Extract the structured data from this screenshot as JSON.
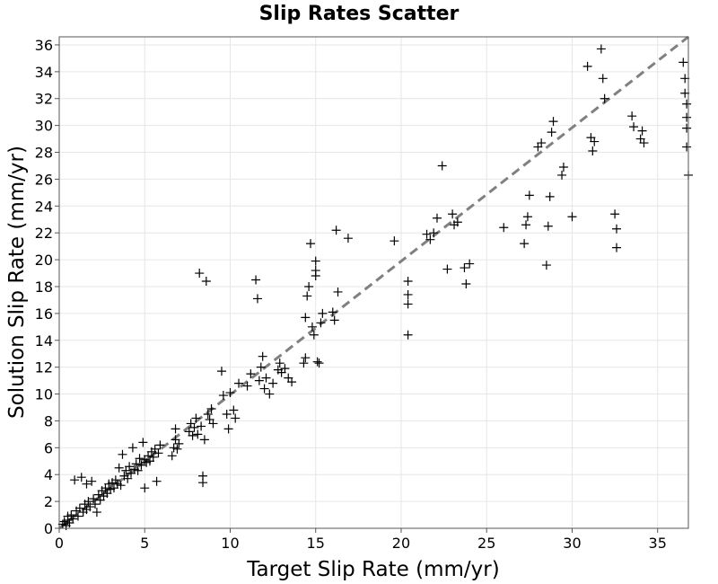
{
  "chart_data": {
    "type": "scatter",
    "title": "Slip Rates Scatter",
    "xlabel": "Target Slip Rate (mm/yr)",
    "ylabel": "Solution Slip Rate (mm/yr)",
    "xlim": [
      0,
      36.8
    ],
    "ylim": [
      0,
      36.6
    ],
    "x_ticks": [
      0,
      5,
      10,
      15,
      20,
      25,
      30,
      35
    ],
    "y_ticks": [
      0,
      2,
      4,
      6,
      8,
      10,
      12,
      14,
      16,
      18,
      20,
      22,
      24,
      26,
      28,
      30,
      32,
      34,
      36
    ],
    "grid": true,
    "marker": "+",
    "reference_line": {
      "style": "dashed",
      "color": "#808080",
      "from": [
        0,
        0
      ],
      "to": [
        36.8,
        36.8
      ]
    },
    "points": [
      [
        0.2,
        0.3
      ],
      [
        0.3,
        0.5
      ],
      [
        0.4,
        0.2
      ],
      [
        0.5,
        0.6
      ],
      [
        0.5,
        0.9
      ],
      [
        0.6,
        0.4
      ],
      [
        0.7,
        1.0
      ],
      [
        0.8,
        0.7
      ],
      [
        0.9,
        3.6
      ],
      [
        1.0,
        1.3
      ],
      [
        1.1,
        0.9
      ],
      [
        1.2,
        1.5
      ],
      [
        1.3,
        3.8
      ],
      [
        1.4,
        1.2
      ],
      [
        1.5,
        1.8
      ],
      [
        1.6,
        1.4
      ],
      [
        1.6,
        3.3
      ],
      [
        1.7,
        2.0
      ],
      [
        1.8,
        1.6
      ],
      [
        1.9,
        3.5
      ],
      [
        2.0,
        2.2
      ],
      [
        2.1,
        1.8
      ],
      [
        2.2,
        1.2
      ],
      [
        2.3,
        2.5
      ],
      [
        2.4,
        2.1
      ],
      [
        2.5,
        2.8
      ],
      [
        2.6,
        2.4
      ],
      [
        2.7,
        3.0
      ],
      [
        2.8,
        2.6
      ],
      [
        2.9,
        3.3
      ],
      [
        3.0,
        2.9
      ],
      [
        3.1,
        3.4
      ],
      [
        3.2,
        3.0
      ],
      [
        3.3,
        3.6
      ],
      [
        3.4,
        3.3
      ],
      [
        3.5,
        4.5
      ],
      [
        3.6,
        3.2
      ],
      [
        3.7,
        5.5
      ],
      [
        3.8,
        3.9
      ],
      [
        3.9,
        4.3
      ],
      [
        4.0,
        3.7
      ],
      [
        4.1,
        4.6
      ],
      [
        4.2,
        4.1
      ],
      [
        4.3,
        6.0
      ],
      [
        4.4,
        4.4
      ],
      [
        4.5,
        4.8
      ],
      [
        4.6,
        4.3
      ],
      [
        4.7,
        5.2
      ],
      [
        4.8,
        4.7
      ],
      [
        4.9,
        6.4
      ],
      [
        5.0,
        3.0
      ],
      [
        5.0,
        5.1
      ],
      [
        5.1,
        4.9
      ],
      [
        5.2,
        5.4
      ],
      [
        5.3,
        5.0
      ],
      [
        5.4,
        5.7
      ],
      [
        5.5,
        5.3
      ],
      [
        5.6,
        5.9
      ],
      [
        5.7,
        3.5
      ],
      [
        5.8,
        5.6
      ],
      [
        5.9,
        6.2
      ],
      [
        6.6,
        5.4
      ],
      [
        6.7,
        6.0
      ],
      [
        6.8,
        6.6
      ],
      [
        6.8,
        7.4
      ],
      [
        6.9,
        5.9
      ],
      [
        7.0,
        6.3
      ],
      [
        7.6,
        7.2
      ],
      [
        7.7,
        7.8
      ],
      [
        7.8,
        6.9
      ],
      [
        7.9,
        7.5
      ],
      [
        8.0,
        8.2
      ],
      [
        8.1,
        7.0
      ],
      [
        8.2,
        19.0
      ],
      [
        8.3,
        7.6
      ],
      [
        8.4,
        3.4
      ],
      [
        8.4,
        3.9
      ],
      [
        8.5,
        6.6
      ],
      [
        8.6,
        18.4
      ],
      [
        8.7,
        8.5
      ],
      [
        8.8,
        8.1
      ],
      [
        8.9,
        8.9
      ],
      [
        9.0,
        7.8
      ],
      [
        9.5,
        11.7
      ],
      [
        9.6,
        9.9
      ],
      [
        9.8,
        8.5
      ],
      [
        9.9,
        7.4
      ],
      [
        10.0,
        10.1
      ],
      [
        10.2,
        8.8
      ],
      [
        10.3,
        8.2
      ],
      [
        10.5,
        10.8
      ],
      [
        11.0,
        10.6
      ],
      [
        11.2,
        11.5
      ],
      [
        11.5,
        18.5
      ],
      [
        11.6,
        17.1
      ],
      [
        11.7,
        11.0
      ],
      [
        11.8,
        12.0
      ],
      [
        11.9,
        12.8
      ],
      [
        12.0,
        10.4
      ],
      [
        12.1,
        11.2
      ],
      [
        12.3,
        10.0
      ],
      [
        12.5,
        10.8
      ],
      [
        12.8,
        11.8
      ],
      [
        12.9,
        12.3
      ],
      [
        13.0,
        11.6
      ],
      [
        13.2,
        11.9
      ],
      [
        13.4,
        11.2
      ],
      [
        13.6,
        10.9
      ],
      [
        14.3,
        12.3
      ],
      [
        14.4,
        12.7
      ],
      [
        14.4,
        15.7
      ],
      [
        14.5,
        17.3
      ],
      [
        14.6,
        18.0
      ],
      [
        14.7,
        21.2
      ],
      [
        14.8,
        15.0
      ],
      [
        14.9,
        14.4
      ],
      [
        15.0,
        18.8
      ],
      [
        15.0,
        19.9
      ],
      [
        15.0,
        19.2
      ],
      [
        15.1,
        12.4
      ],
      [
        15.2,
        12.3
      ],
      [
        15.3,
        15.3
      ],
      [
        15.4,
        16.0
      ],
      [
        16.0,
        16.1
      ],
      [
        16.1,
        15.5
      ],
      [
        16.2,
        22.2
      ],
      [
        16.3,
        17.6
      ],
      [
        16.9,
        21.6
      ],
      [
        19.6,
        21.4
      ],
      [
        20.4,
        14.4
      ],
      [
        20.4,
        16.7
      ],
      [
        20.4,
        17.4
      ],
      [
        20.4,
        18.4
      ],
      [
        21.5,
        21.9
      ],
      [
        21.7,
        21.5
      ],
      [
        21.9,
        22.0
      ],
      [
        22.1,
        23.1
      ],
      [
        22.4,
        27.0
      ],
      [
        22.7,
        19.3
      ],
      [
        23.0,
        23.4
      ],
      [
        23.1,
        22.6
      ],
      [
        23.3,
        22.8
      ],
      [
        23.7,
        19.4
      ],
      [
        23.8,
        18.2
      ],
      [
        24.0,
        19.7
      ],
      [
        26.0,
        22.4
      ],
      [
        27.2,
        21.2
      ],
      [
        27.3,
        22.6
      ],
      [
        27.4,
        23.2
      ],
      [
        27.5,
        24.8
      ],
      [
        28.0,
        28.4
      ],
      [
        28.2,
        28.7
      ],
      [
        28.5,
        19.6
      ],
      [
        28.6,
        22.5
      ],
      [
        28.7,
        24.7
      ],
      [
        28.8,
        29.5
      ],
      [
        28.9,
        30.3
      ],
      [
        29.4,
        26.3
      ],
      [
        29.5,
        26.9
      ],
      [
        30.0,
        23.2
      ],
      [
        30.9,
        34.4
      ],
      [
        31.1,
        29.1
      ],
      [
        31.2,
        28.1
      ],
      [
        31.3,
        28.8
      ],
      [
        31.7,
        35.7
      ],
      [
        31.8,
        33.5
      ],
      [
        31.9,
        32.0
      ],
      [
        32.5,
        23.4
      ],
      [
        32.6,
        22.3
      ],
      [
        32.6,
        20.9
      ],
      [
        33.5,
        30.7
      ],
      [
        33.6,
        29.9
      ],
      [
        34.0,
        29.0
      ],
      [
        34.1,
        29.6
      ],
      [
        34.2,
        28.7
      ],
      [
        36.5,
        34.7
      ],
      [
        36.6,
        33.5
      ],
      [
        36.6,
        32.4
      ],
      [
        36.7,
        31.6
      ],
      [
        36.7,
        30.6
      ],
      [
        36.7,
        29.8
      ],
      [
        36.7,
        28.4
      ],
      [
        36.8,
        26.3
      ]
    ]
  }
}
